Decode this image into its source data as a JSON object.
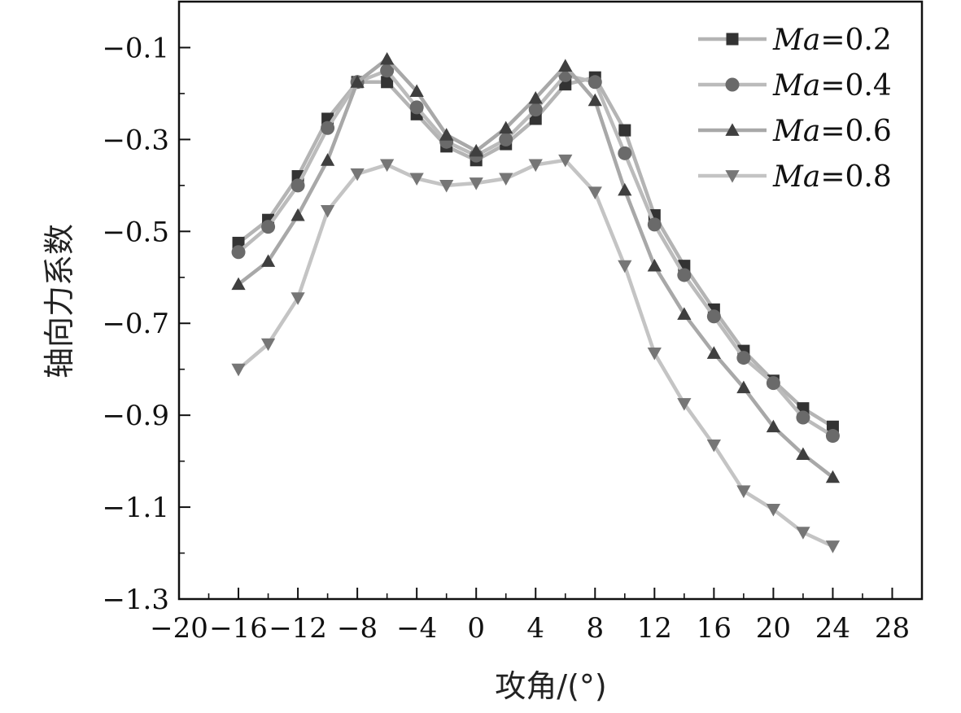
{
  "chart_data": {
    "type": "line",
    "title": "",
    "xlabel": "攻角/(°)",
    "ylabel": "轴向力系数",
    "xlim": [
      -20,
      30
    ],
    "ylim": [
      -1.3,
      0.0
    ],
    "xticks": [
      -20,
      -16,
      -12,
      -8,
      -4,
      0,
      4,
      8,
      12,
      16,
      20,
      24,
      28
    ],
    "xtick_labels": [
      "−20",
      "−16",
      "−12",
      "−8",
      "−4",
      "0",
      "4",
      "8",
      "12",
      "16",
      "20",
      "24",
      "28"
    ],
    "yticks": [
      -1.3,
      -1.1,
      -0.9,
      -0.7,
      -0.5,
      -0.3,
      -0.1
    ],
    "ytick_labels": [
      "−1.3",
      "−1.1",
      "−0.9",
      "−0.7",
      "−0.5",
      "−0.3",
      "−0.1"
    ],
    "grid": false,
    "legend_position": "top-right",
    "x": [
      -16,
      -14,
      -12,
      -10,
      -8,
      -6,
      -4,
      -2,
      0,
      2,
      4,
      6,
      8,
      10,
      12,
      14,
      16,
      18,
      20,
      22,
      24
    ],
    "series": [
      {
        "name": "Ma=0.2",
        "name_italic": "Ma",
        "name_rest": "=0.2",
        "marker": "square",
        "line_color": "#b4b4b4",
        "marker_color": "#333333",
        "values": [
          -0.525,
          -0.475,
          -0.38,
          -0.255,
          -0.175,
          -0.175,
          -0.245,
          -0.315,
          -0.345,
          -0.31,
          -0.255,
          -0.18,
          -0.165,
          -0.28,
          -0.465,
          -0.575,
          -0.67,
          -0.76,
          -0.825,
          -0.885,
          -0.925
        ]
      },
      {
        "name": "Ma=0.4",
        "name_italic": "Ma",
        "name_rest": "=0.4",
        "marker": "circle",
        "line_color": "#bbbbbb",
        "marker_color": "#6a6a6a",
        "values": [
          -0.545,
          -0.49,
          -0.4,
          -0.275,
          -0.175,
          -0.15,
          -0.23,
          -0.305,
          -0.335,
          -0.3,
          -0.235,
          -0.16,
          -0.175,
          -0.33,
          -0.485,
          -0.595,
          -0.685,
          -0.775,
          -0.83,
          -0.905,
          -0.945
        ]
      },
      {
        "name": "Ma=0.6",
        "name_italic": "Ma",
        "name_rest": "=0.6",
        "marker": "triangle-up",
        "line_color": "#a8a8a8",
        "marker_color": "#3f3f3f",
        "values": [
          -0.615,
          -0.565,
          -0.465,
          -0.345,
          -0.175,
          -0.125,
          -0.195,
          -0.29,
          -0.325,
          -0.275,
          -0.21,
          -0.14,
          -0.215,
          -0.41,
          -0.575,
          -0.68,
          -0.765,
          -0.84,
          -0.925,
          -0.985,
          -1.035
        ]
      },
      {
        "name": "Ma=0.8",
        "name_italic": "Ma",
        "name_rest": "=0.8",
        "marker": "triangle-down",
        "line_color": "#c4c4c4",
        "marker_color": "#767676",
        "values": [
          -0.8,
          -0.745,
          -0.645,
          -0.455,
          -0.375,
          -0.355,
          -0.385,
          -0.4,
          -0.395,
          -0.385,
          -0.355,
          -0.345,
          -0.415,
          -0.575,
          -0.765,
          -0.875,
          -0.965,
          -1.065,
          -1.105,
          -1.155,
          -1.185
        ]
      }
    ]
  }
}
